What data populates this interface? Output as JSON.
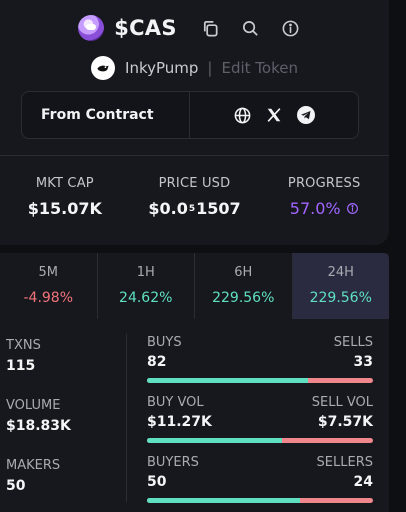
{
  "token": {
    "ticker": "$CAS",
    "creator": "InkyPump",
    "separator": "|",
    "edit_label": "Edit Token"
  },
  "contract": {
    "label": "From Contract"
  },
  "icons": {
    "copy": "copy-icon",
    "search": "search-icon",
    "info": "info-icon",
    "globe": "globe-icon",
    "x": "x-icon",
    "telegram": "telegram-icon"
  },
  "stats": {
    "mkt_cap": {
      "label": "MKT CAP",
      "value": "$15.07K"
    },
    "price": {
      "label": "PRICE USD",
      "prefix": "$0.0",
      "sub": "5",
      "suffix": "1507"
    },
    "progress": {
      "label": "PROGRESS",
      "value": "57.0%"
    }
  },
  "periods": [
    {
      "label": "5M",
      "value": "-4.98%",
      "trend": "neg"
    },
    {
      "label": "1H",
      "value": "24.62%",
      "trend": "pos"
    },
    {
      "label": "6H",
      "value": "229.56%",
      "trend": "pos"
    },
    {
      "label": "24H",
      "value": "229.56%",
      "trend": "pos",
      "active": true
    }
  ],
  "summary": {
    "txns": {
      "label": "TXNS",
      "value": "115"
    },
    "volume": {
      "label": "VOLUME",
      "value": "$18.83K"
    },
    "makers": {
      "label": "MAKERS",
      "value": "50"
    }
  },
  "pairs": {
    "buys_sells": {
      "left_label": "BUYS",
      "left_value": "82",
      "right_label": "SELLS",
      "right_value": "33",
      "ratio": 0.713
    },
    "vol": {
      "left_label": "BUY VOL",
      "left_value": "$11.27K",
      "right_label": "SELL VOL",
      "right_value": "$7.57K",
      "ratio": 0.598
    },
    "buyers_sellers": {
      "left_label": "BUYERS",
      "left_value": "50",
      "right_label": "SELLERS",
      "right_value": "24",
      "ratio": 0.676
    }
  },
  "colors": {
    "background": "#0e0f12",
    "card": "#17181d",
    "accent_purple": "#a066ff",
    "positive": "#5fe0c0",
    "negative": "#f0737a",
    "active_tab": "#2a2b40"
  }
}
